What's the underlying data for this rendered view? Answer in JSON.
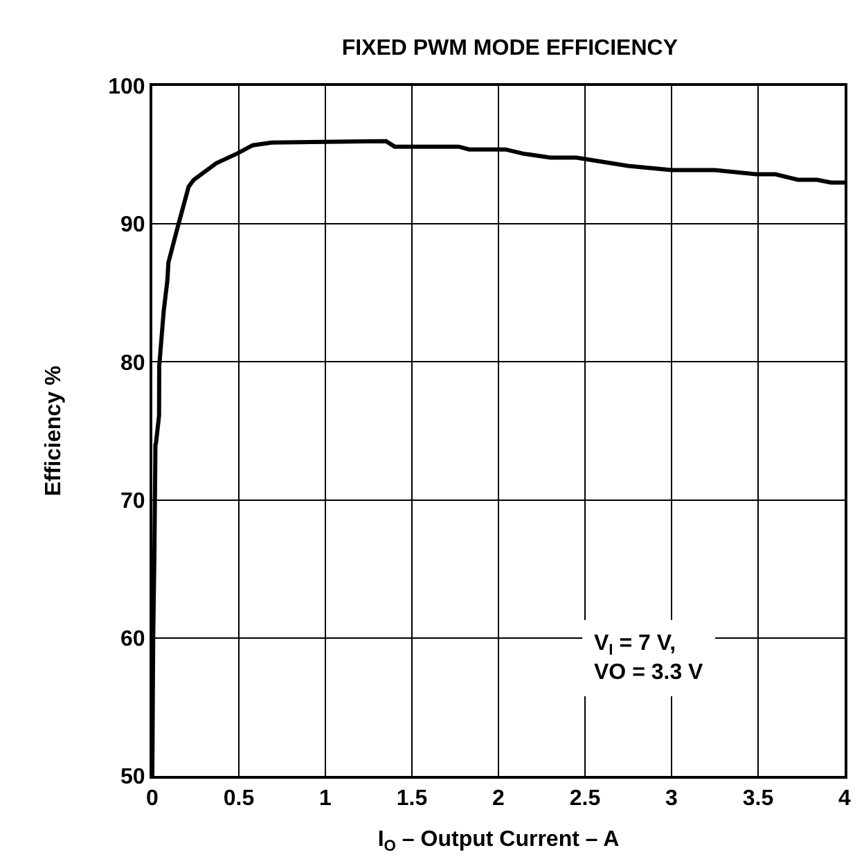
{
  "chart_data": {
    "type": "line",
    "title": "FIXED PWM MODE EFFICIENCY",
    "xlabel": "I$_{O}$ – Output Current – A",
    "ylabel": "Efficiency %",
    "annotations": [
      "V$_{I}$ = 7 V,\nVO = 3.3 V"
    ],
    "series": [
      {
        "color": "#000000",
        "x": [
          0,
          0.005,
          0.012,
          0.018,
          0.021,
          0.039,
          0.04,
          0.066,
          0.087,
          0.093,
          0.145,
          0.21,
          0.24,
          0.37,
          0.49,
          0.58,
          0.69,
          1.35,
          1.4,
          1.77,
          1.83,
          2.04,
          2.14,
          2.3,
          2.45,
          2.75,
          3.0,
          3.25,
          3.49,
          3.6,
          3.73,
          3.84,
          3.92,
          4.0
        ],
        "values": [
          50,
          60,
          66,
          74,
          74.1,
          76.1,
          79.7,
          83.7,
          85.9,
          87.2,
          89.7,
          92.7,
          93.2,
          94.4,
          95.1,
          95.7,
          95.9,
          96.0,
          95.6,
          95.6,
          95.4,
          95.4,
          95.1,
          94.8,
          94.8,
          94.2,
          93.9,
          93.9,
          93.6,
          93.6,
          93.2,
          93.2,
          93.0,
          93.0
        ]
      }
    ],
    "xlim": [
      0,
      4
    ],
    "xticks": [
      0,
      0.5,
      1,
      1.5,
      2,
      2.5,
      3,
      3.5,
      4
    ],
    "ylim": [
      50,
      100
    ],
    "yticks": [
      50,
      60,
      70,
      80,
      90,
      100
    ],
    "grid": true,
    "line_style": "solid",
    "marker": "none"
  }
}
